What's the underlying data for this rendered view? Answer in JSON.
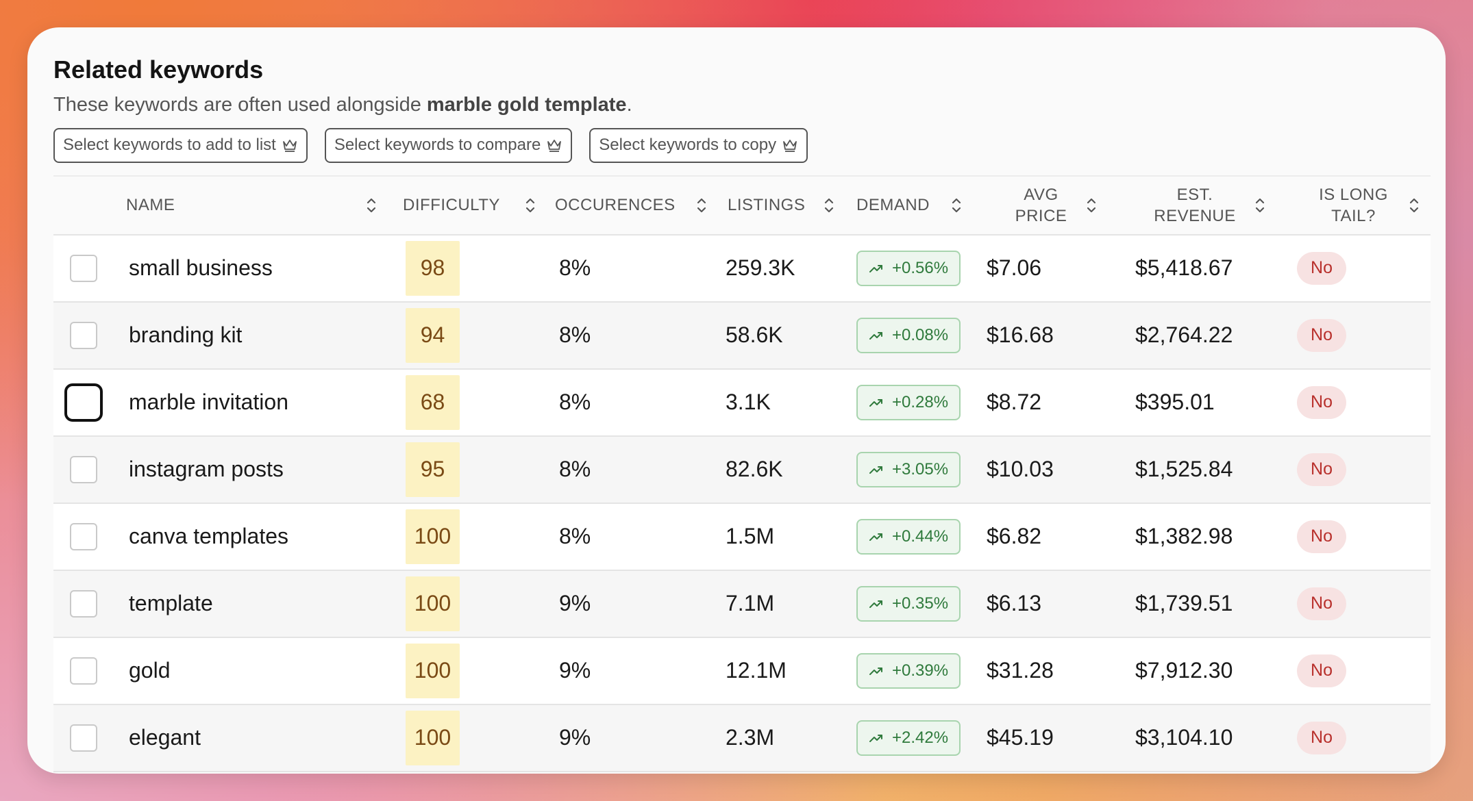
{
  "header": {
    "title": "Related keywords",
    "subtitle_prefix": "These keywords are often used alongside ",
    "subtitle_keyword": "marble gold template",
    "subtitle_suffix": "."
  },
  "actions": [
    {
      "label": "Select keywords to add to list",
      "icon": "crown-icon"
    },
    {
      "label": "Select keywords to compare",
      "icon": "crown-icon"
    },
    {
      "label": "Select keywords to copy",
      "icon": "crown-icon"
    }
  ],
  "columns": {
    "name": "NAME",
    "difficulty": "DIFFICULTY",
    "occurences": "OCCURENCES",
    "listings": "LISTINGS",
    "demand": "DEMAND",
    "avg_price_1": "AVG",
    "avg_price_2": "PRICE",
    "est_revenue_1": "EST.",
    "est_revenue_2": "REVENUE",
    "long_tail_1": "IS LONG",
    "long_tail_2": "TAIL?"
  },
  "rows": [
    {
      "name": "small business",
      "difficulty": "98",
      "occurences": "8%",
      "listings": "259.3K",
      "demand": "+0.56%",
      "avg_price": "$7.06",
      "est_revenue": "$5,418.67",
      "long_tail": "No"
    },
    {
      "name": "branding kit",
      "difficulty": "94",
      "occurences": "8%",
      "listings": "58.6K",
      "demand": "+0.08%",
      "avg_price": "$16.68",
      "est_revenue": "$2,764.22",
      "long_tail": "No"
    },
    {
      "name": "marble invitation",
      "difficulty": "68",
      "occurences": "8%",
      "listings": "3.1K",
      "demand": "+0.28%",
      "avg_price": "$8.72",
      "est_revenue": "$395.01",
      "long_tail": "No"
    },
    {
      "name": "instagram posts",
      "difficulty": "95",
      "occurences": "8%",
      "listings": "82.6K",
      "demand": "+3.05%",
      "avg_price": "$10.03",
      "est_revenue": "$1,525.84",
      "long_tail": "No"
    },
    {
      "name": "canva templates",
      "difficulty": "100",
      "occurences": "8%",
      "listings": "1.5M",
      "demand": "+0.44%",
      "avg_price": "$6.82",
      "est_revenue": "$1,382.98",
      "long_tail": "No"
    },
    {
      "name": "template",
      "difficulty": "100",
      "occurences": "9%",
      "listings": "7.1M",
      "demand": "+0.35%",
      "avg_price": "$6.13",
      "est_revenue": "$1,739.51",
      "long_tail": "No"
    },
    {
      "name": "gold",
      "difficulty": "100",
      "occurences": "9%",
      "listings": "12.1M",
      "demand": "+0.39%",
      "avg_price": "$31.28",
      "est_revenue": "$7,912.30",
      "long_tail": "No"
    },
    {
      "name": "elegant",
      "difficulty": "100",
      "occurences": "9%",
      "listings": "2.3M",
      "demand": "+2.42%",
      "avg_price": "$45.19",
      "est_revenue": "$3,104.10",
      "long_tail": "No"
    }
  ],
  "icons": {
    "sort": "sort-updown-icon",
    "demand": "trend-up-icon",
    "premium": "crown-icon"
  },
  "colors": {
    "difficulty_bg": "#fcf2c3",
    "difficulty_text": "#7a4a15",
    "demand_bg": "#edf6ee",
    "demand_text": "#2f7a3c",
    "badge_bg": "#f7e2e2",
    "badge_text": "#b8302c"
  }
}
